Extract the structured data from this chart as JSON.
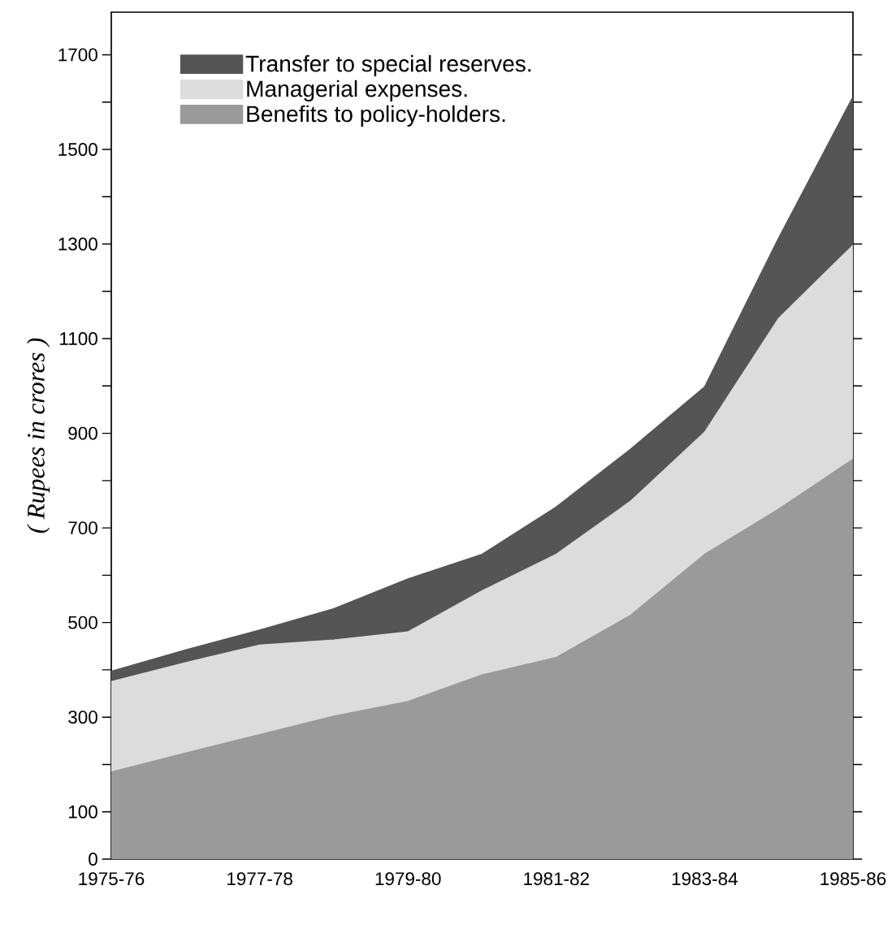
{
  "chart_data": {
    "type": "area",
    "stacked": true,
    "ylabel": "( Rupees in crores )",
    "categories": [
      "1975-76",
      null,
      "1977-78",
      null,
      "1979-80",
      null,
      "1981-82",
      null,
      "1983-84",
      null,
      "1985-86"
    ],
    "series": [
      {
        "name": "Benefits to policy-holders.",
        "color": "#9a9a9a",
        "values": [
          184,
          224,
          263,
          302,
          333,
          389,
          426,
          515,
          644,
          740,
          845
        ]
      },
      {
        "name": "Managerial expenses.",
        "color": "#dcdcdc",
        "values": [
          191,
          191,
          189,
          161,
          147,
          178,
          218,
          241,
          258,
          403,
          452
        ]
      },
      {
        "name": "Transfer to special reserves.",
        "color": "#555555",
        "values": [
          22,
          27,
          32,
          66,
          112,
          77,
          100,
          110,
          96,
          170,
          314
        ]
      }
    ],
    "ylim": [
      0,
      1790
    ],
    "yticks": [
      0,
      100,
      {
        "value": 200,
        "label": null
      },
      300,
      {
        "value": 400,
        "label": null
      },
      500,
      {
        "value": 600,
        "label": null
      },
      700,
      {
        "value": 800,
        "label": null
      },
      900,
      {
        "value": 1000,
        "label": null
      },
      1100,
      {
        "value": 1200,
        "label": null
      },
      1300,
      {
        "value": 1400,
        "label": null
      },
      1500,
      {
        "value": 1600,
        "label": null
      },
      1700
    ],
    "legend": "top left"
  }
}
